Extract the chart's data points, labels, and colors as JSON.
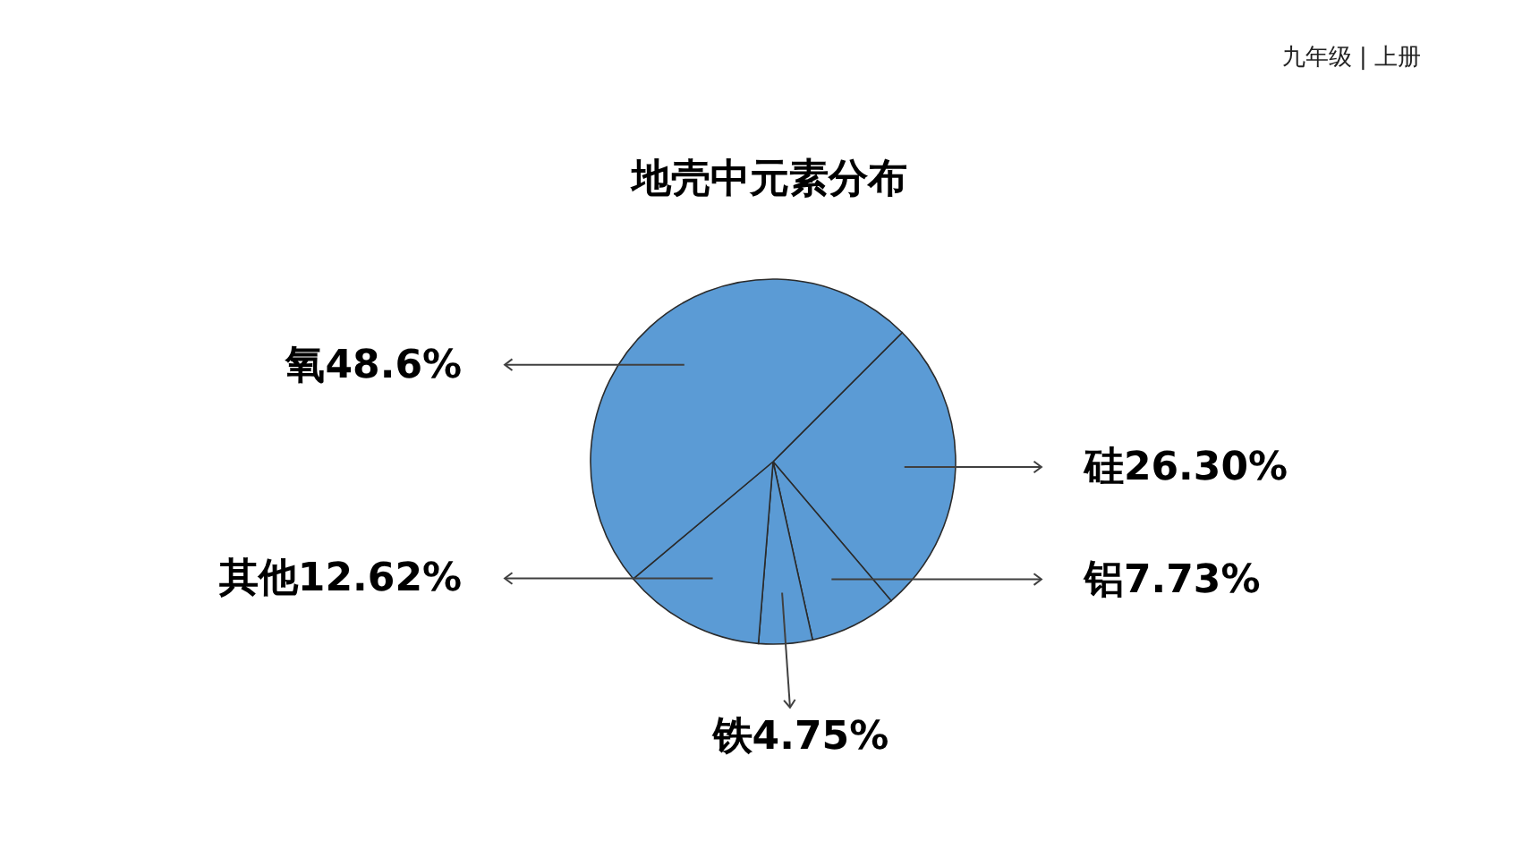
{
  "chart_data": {
    "type": "pie",
    "title": "地壳中元素分布",
    "categories": [
      "硅",
      "铝",
      "铁",
      "其他",
      "氧"
    ],
    "values": [
      26.3,
      7.73,
      4.75,
      12.62,
      48.6
    ],
    "colors": [
      "#5b9bd5",
      "#5b9bd5",
      "#5b9bd5",
      "#5b9bd5",
      "#5b9bd5"
    ],
    "value_labels": [
      "26.30%",
      "7.73%",
      "4.75%",
      "12.62%",
      "48.6%"
    ],
    "annotations": [
      "九年级 | 上册"
    ]
  }
}
